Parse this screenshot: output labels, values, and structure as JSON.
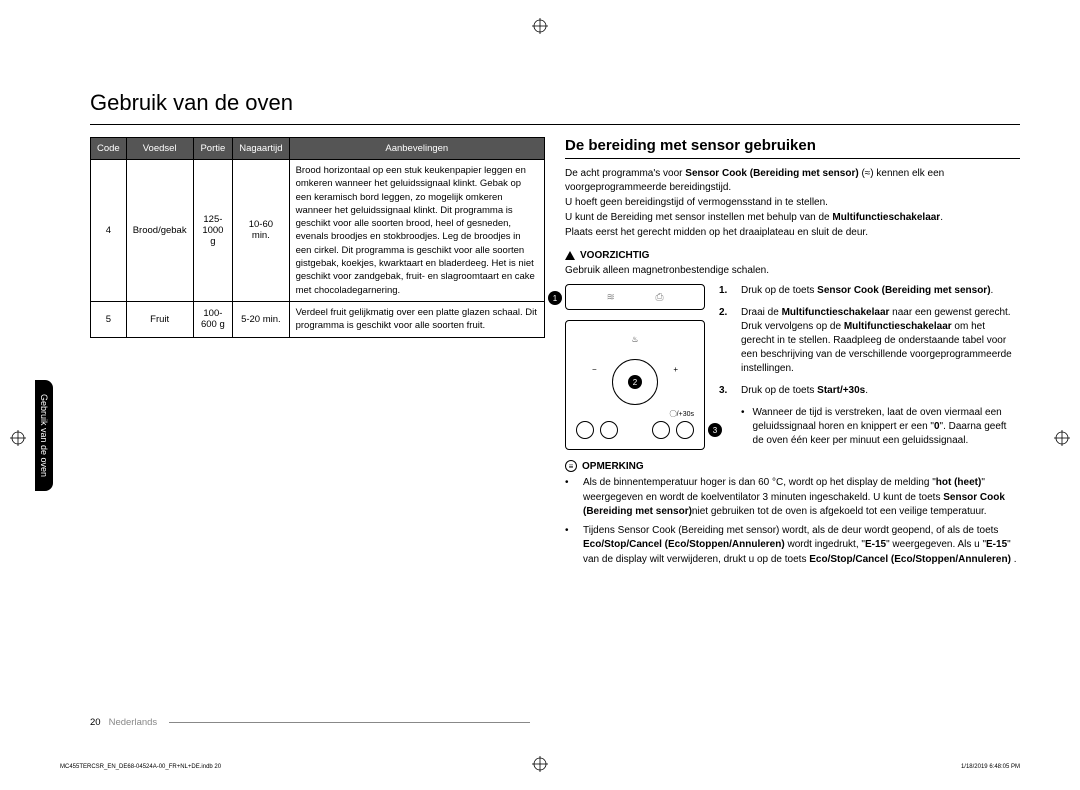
{
  "title": "Gebruik van de oven",
  "side_tab": "Gebruik van de oven",
  "table": {
    "headers": [
      "Code",
      "Voedsel",
      "Portie",
      "Nagaartijd",
      "Aanbevelingen"
    ],
    "rows": [
      {
        "code": "4",
        "food": "Brood/gebak",
        "portion": "125-1000 g",
        "time": "10-60 min.",
        "recommend": "Brood horizontaal op een stuk keukenpapier leggen en omkeren wanneer het geluidssignaal klinkt. Gebak op een keramisch bord leggen, zo mogelijk omkeren wanneer het geluidssignaal klinkt. Dit programma is geschikt voor alle soorten brood, heel of gesneden, evenals broodjes en stokbroodjes. Leg de broodjes in een cirkel. Dit programma is geschikt voor alle soorten gistgebak, koekjes, kwarktaart en bladerdeeg. Het is niet geschikt voor zandgebak, fruit- en slagroomtaart en cake met chocoladegarnering."
      },
      {
        "code": "5",
        "food": "Fruit",
        "portion": "100-600 g",
        "time": "5-20 min.",
        "recommend": "Verdeel fruit gelijkmatig over een platte glazen schaal. Dit programma is geschikt voor alle soorten fruit."
      }
    ]
  },
  "right": {
    "subtitle": "De bereiding met sensor gebruiken",
    "intro": [
      "De acht programma's voor <b>Sensor Cook (Bereiding met sensor)</b> (≈) kennen elk een voorgeprogrammeerde bereidingstijd.",
      "U hoeft geen bereidingstijd of vermogensstand in te stellen.",
      "U kunt de Bereiding met sensor instellen met behulp van de <b>Multifunctieschakelaar</b>.",
      "Plaats eerst het gerecht midden op het draaiplateau en sluit de deur."
    ],
    "caution_head": "VOORZICHTIG",
    "caution_text": "Gebruik alleen magnetronbestendige schalen.",
    "steps": [
      {
        "n": "1.",
        "html": "Druk op de toets <b>Sensor Cook (Bereiding met sensor)</b>."
      },
      {
        "n": "2.",
        "html": "Draai de <b>Multifunctieschakelaar</b> naar een gewenst gerecht. Druk vervolgens op de <b>Multifunctieschakelaar</b> om het gerecht in te stellen. Raadpleeg de onderstaande tabel voor een beschrijving van de verschillende voorgeprogrammeerde instellingen."
      },
      {
        "n": "3.",
        "html": "Druk op de toets <b>Start/+30s</b>."
      }
    ],
    "sub_bullet": "Wanneer de tijd is verstreken, laat de oven viermaal een geluidssignaal horen en knippert er een \"<b>0</b>\". Daarna geeft de oven één keer per minuut een geluidssignaal.",
    "note_head": "OPMERKING",
    "notes": [
      "Als de binnentemperatuur hoger is dan 60 °C, wordt op het display de melding \"<b>hot (heet)</b>\" weergegeven en wordt de koelventilator 3 minuten ingeschakeld. U kunt de toets <b>Sensor Cook (Bereiding met sensor)</b>niet gebruiken tot de oven is afgekoeld tot een veilige temperatuur.",
      "Tijdens Sensor Cook (Bereiding met sensor) wordt, als de deur wordt geopend, of als de toets <b>Eco/Stop/Cancel (Eco/Stoppen/Annuleren)</b> wordt ingedrukt, \"<b>E-15</b>\" weergegeven. Als u \"<b>E-15</b>\" van de display wilt verwijderen, drukt u op de toets <b>Eco/Stop/Cancel (Eco/Stoppen/Annuleren)</b> ."
    ]
  },
  "footer": {
    "page": "20",
    "lang": "Nederlands"
  },
  "meta": {
    "left": "MC455TERCSR_EN_DE68-04524A-00_FR+NL+DE.indb   20",
    "right": "1/18/2019   6:48:05 PM"
  }
}
